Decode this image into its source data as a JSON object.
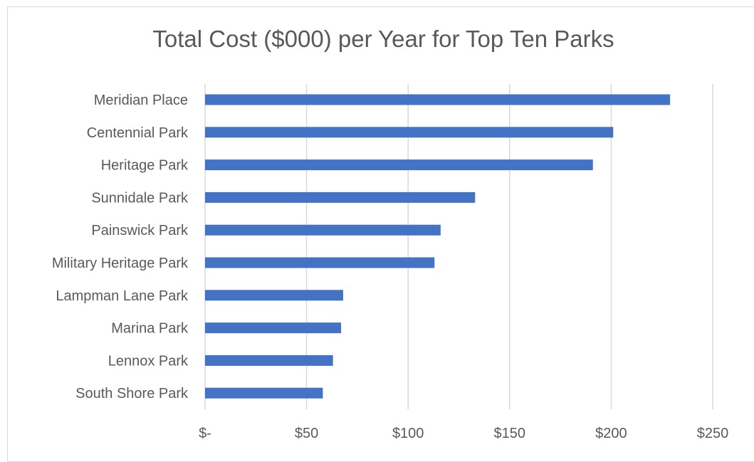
{
  "chart_data": {
    "type": "bar",
    "orientation": "horizontal",
    "title": "Total Cost ($000) per Year for Top Ten Parks",
    "categories": [
      "Meridian Place",
      "Centennial Park",
      "Heritage Park",
      "Sunnidale Park",
      "Painswick Park",
      "Military Heritage Park",
      "Lampman Lane Park",
      "Marina Park",
      "Lennox Park",
      "South Shore Park"
    ],
    "values": [
      229,
      201,
      191,
      133,
      116,
      113,
      68,
      67,
      63,
      58
    ],
    "xlim": [
      0,
      250
    ],
    "xticks": [
      0,
      50,
      100,
      150,
      200,
      250
    ],
    "xtick_labels": [
      "$-",
      "$50",
      "$100",
      "$150",
      "$200",
      "$250"
    ],
    "grid": "vertical",
    "bar_color": "#4472C4",
    "grid_color": "#d9d9d9",
    "legend": "none"
  }
}
